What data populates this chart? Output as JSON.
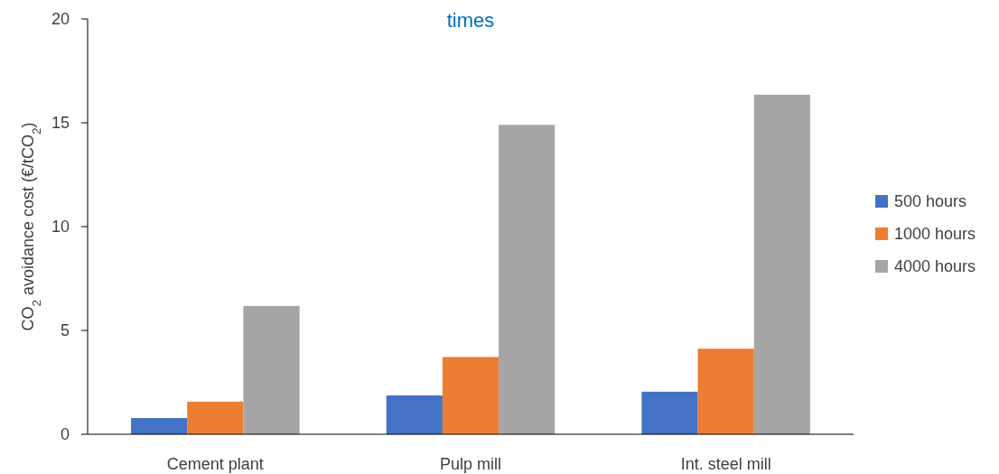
{
  "chart_data": {
    "type": "bar",
    "title": "times",
    "ylabel": "CO$_{2}$ avoidance cost (€/tCO$_{2}$)",
    "categories": [
      "Cement plant",
      "Pulp mill",
      "Int. steel mill"
    ],
    "series": [
      {
        "name": "500 hours",
        "color": "#4472c4",
        "values": [
          0.78,
          1.87,
          2.05
        ]
      },
      {
        "name": "1000 hours",
        "color": "#ed7d31",
        "values": [
          1.57,
          3.72,
          4.12
        ]
      },
      {
        "name": "4000 hours",
        "color": "#a5a5a5",
        "values": [
          6.18,
          14.9,
          16.35
        ]
      }
    ],
    "ylim": [
      0,
      20
    ],
    "yticks": [
      0,
      5,
      10,
      15,
      20
    ],
    "grid": false,
    "legend": "right"
  }
}
